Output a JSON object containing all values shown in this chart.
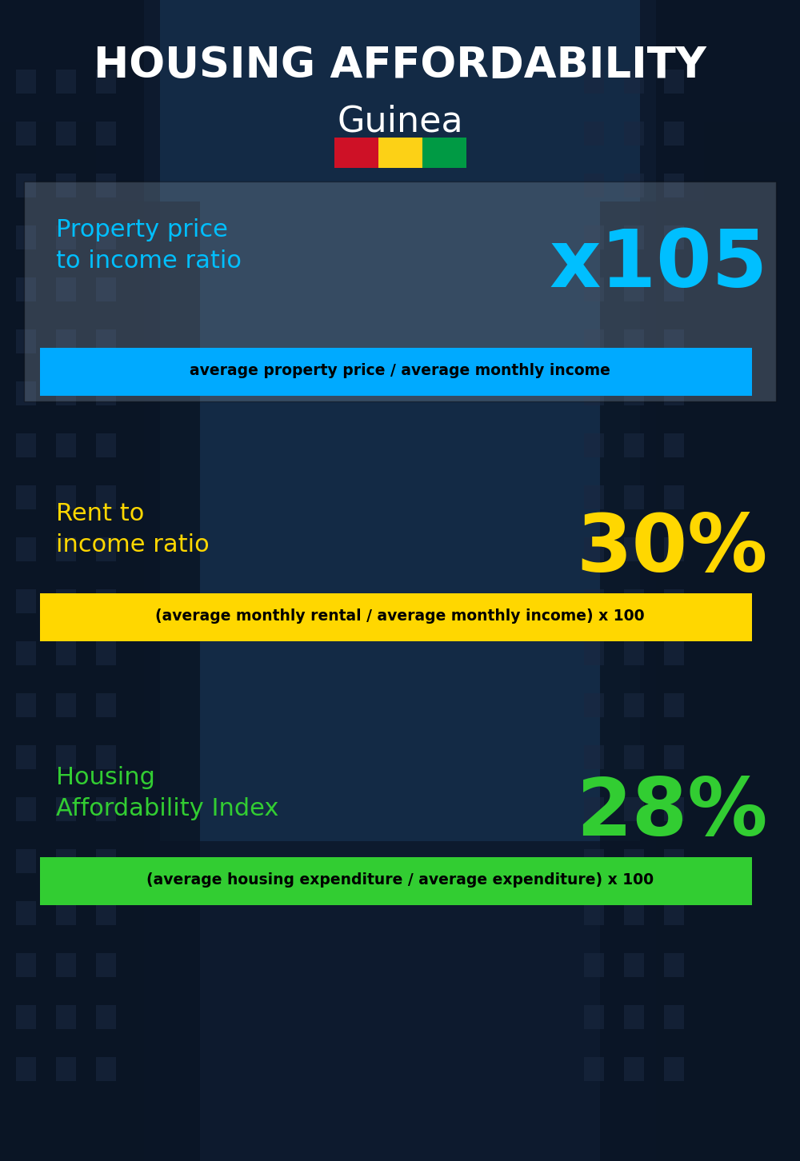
{
  "title_main": "HOUSING AFFORDABILITY",
  "title_country": "Guinea",
  "background_color": "#0a1628",
  "section1_label": "Property price\nto income ratio",
  "section1_value": "x105",
  "section1_label_color": "#00bfff",
  "section1_value_color": "#00bfff",
  "section1_note": "average property price / average monthly income",
  "section1_note_bg": "#00aaff",
  "section1_note_color": "#000000",
  "section1_panel_color": "#7a8a9a",
  "section1_panel_alpha": 0.35,
  "section2_label": "Rent to\nincome ratio",
  "section2_value": "30%",
  "section2_label_color": "#FFD700",
  "section2_value_color": "#FFD700",
  "section2_note": "(average monthly rental / average monthly income) x 100",
  "section2_note_bg": "#FFD700",
  "section2_note_color": "#000000",
  "section3_label": "Housing\nAffordability Index",
  "section3_value": "28%",
  "section3_label_color": "#32CD32",
  "section3_value_color": "#32CD32",
  "section3_note": "(average housing expenditure / average expenditure) x 100",
  "section3_note_bg": "#32CD32",
  "section3_note_color": "#000000",
  "flag_colors": [
    "#CE1126",
    "#FCD116",
    "#009A44"
  ],
  "title_color": "#ffffff",
  "country_color": "#ffffff"
}
